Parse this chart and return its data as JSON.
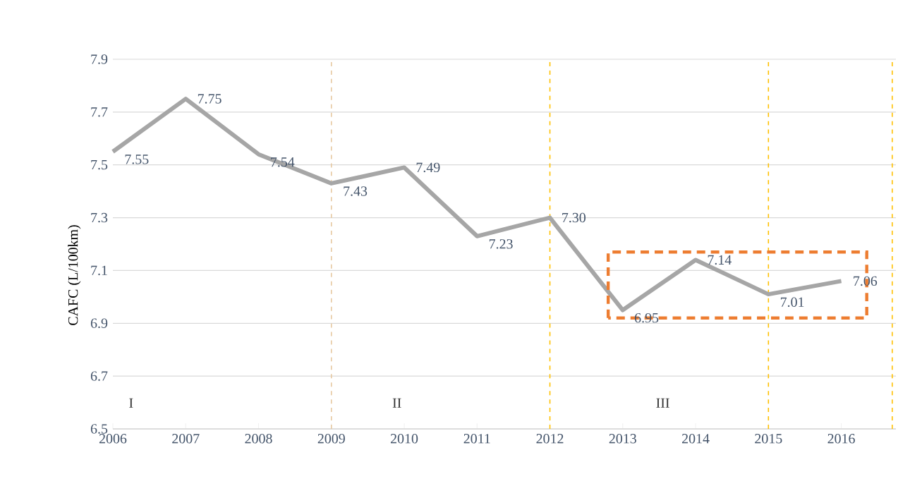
{
  "chart_data": {
    "type": "line",
    "ylabel": "CAFC  (L/100km)",
    "x": [
      2006,
      2007,
      2008,
      2009,
      2010,
      2011,
      2012,
      2013,
      2014,
      2015,
      2016
    ],
    "values": [
      7.55,
      7.75,
      7.54,
      7.43,
      7.49,
      7.23,
      7.3,
      6.95,
      7.14,
      7.01,
      7.06
    ],
    "value_labels": [
      "7.55",
      "7.75",
      "7.54",
      "7.43",
      "7.49",
      "7.23",
      "7.30",
      "6.95",
      "7.14",
      "7.01",
      "7.06"
    ],
    "color": "#a6a6a6",
    "xlim": [
      2006,
      2016.75
    ],
    "xticks": [
      2006,
      2007,
      2008,
      2009,
      2010,
      2011,
      2012,
      2013,
      2014,
      2015,
      2016
    ],
    "ylim": [
      6.5,
      7.9
    ],
    "yticks": [
      6.5,
      6.7,
      6.9,
      7.1,
      7.3,
      7.5,
      7.7,
      7.9
    ],
    "grid": "y",
    "marker": "none",
    "line_style": "solid",
    "ref_lines": [
      {
        "axis": "x",
        "value": 2009,
        "color": "#e6c8a0",
        "line_style": "dashed"
      },
      {
        "axis": "x",
        "value": 2012,
        "color": "#ffc000",
        "line_style": "dashed"
      },
      {
        "axis": "x",
        "value": 2015,
        "color": "#ffc000",
        "line_style": "dashed"
      },
      {
        "axis": "x",
        "value": 2016.7,
        "color": "#ffc000",
        "line_style": "dashed"
      }
    ],
    "annotations": [
      "I",
      "II",
      "III"
    ]
  }
}
